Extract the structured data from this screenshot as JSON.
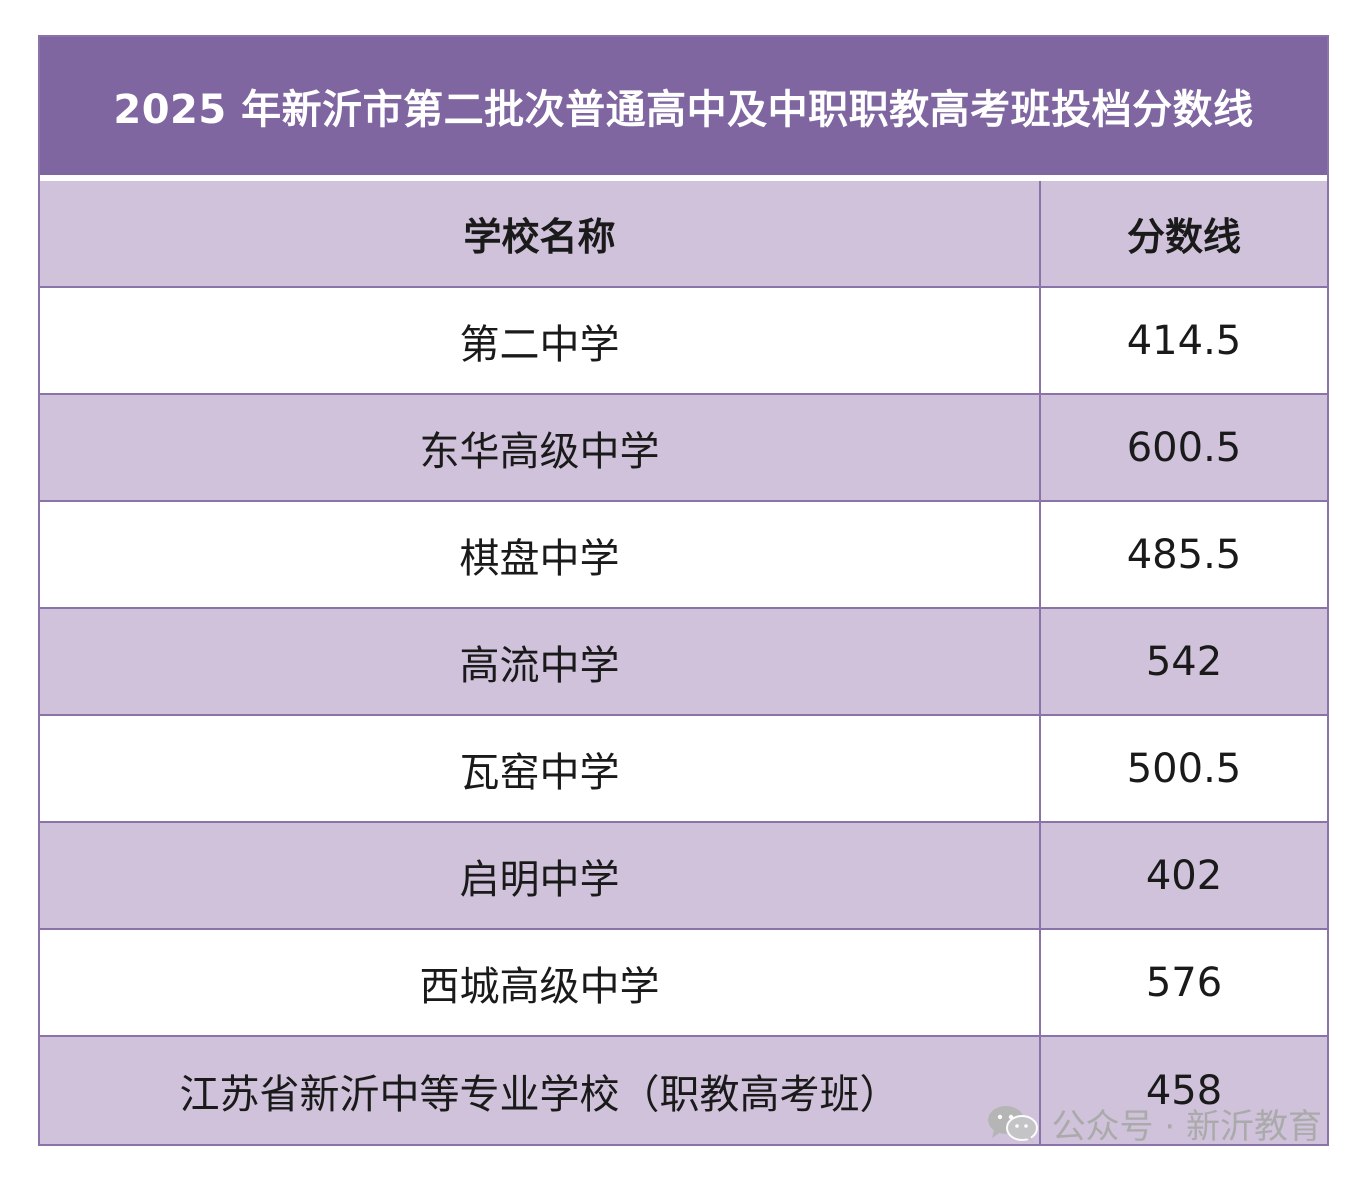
{
  "title": "2025 年新沂市第二批次普通高中及中职职教高考班投档分数线",
  "table": {
    "headers": {
      "name": "学校名称",
      "score": "分数线"
    },
    "rows": [
      {
        "name": "第二中学",
        "score": "414.5"
      },
      {
        "name": "东华高级中学",
        "score": "600.5"
      },
      {
        "name": "棋盘中学",
        "score": "485.5"
      },
      {
        "name": "高流中学",
        "score": "542"
      },
      {
        "name": "瓦窑中学",
        "score": "500.5"
      },
      {
        "name": "启明中学",
        "score": "402"
      },
      {
        "name": "西城高级中学",
        "score": "576"
      },
      {
        "name": "江苏省新沂中等专业学校（职教高考班）",
        "score": "458"
      }
    ]
  },
  "watermark": {
    "text": "公众号 · 新沂教育",
    "icon": "wechat-icon"
  },
  "colors": {
    "title_bg": "#7f66a1",
    "row_shade": "#cfc2da",
    "border": "#8a73a8"
  }
}
